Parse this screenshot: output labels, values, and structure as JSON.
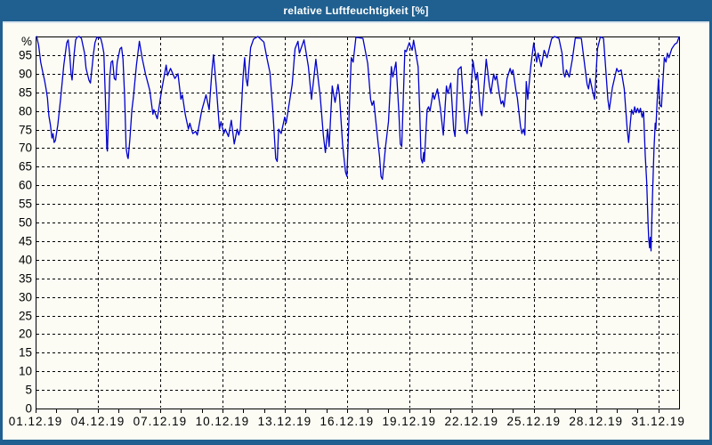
{
  "window": {
    "title": "relative Luftfeuchtigkeit [%]"
  },
  "colors": {
    "titlebar": "#1f6090",
    "window_border": "#1f6090",
    "plot_background": "#fcfcf5",
    "grid": "#000000",
    "series_line": "#0000cc"
  },
  "chart_data": {
    "type": "line",
    "title": "relative Luftfeuchtigkeit [%]",
    "xlabel": "",
    "ylabel": "%",
    "y_axis_unit": "%",
    "ylim": [
      0,
      100
    ],
    "x_range_days": [
      0,
      31
    ],
    "grid": "dashed",
    "legend": "none",
    "y_tick_values": [
      0,
      5,
      10,
      15,
      20,
      25,
      30,
      35,
      40,
      45,
      50,
      55,
      60,
      65,
      70,
      75,
      80,
      85,
      90,
      95
    ],
    "y_grid_values": [
      5,
      10,
      15,
      20,
      25,
      30,
      35,
      40,
      45,
      50,
      55,
      60,
      65,
      70,
      75,
      80,
      85,
      90,
      95
    ],
    "x_grid_days": [
      3,
      6,
      9,
      12,
      15,
      18,
      21,
      24,
      27,
      30
    ],
    "x_minor_tick_days": [
      0,
      1,
      2,
      3,
      4,
      5,
      6,
      7,
      8,
      9,
      10,
      11,
      12,
      13,
      14,
      15,
      16,
      17,
      18,
      19,
      20,
      21,
      22,
      23,
      24,
      25,
      26,
      27,
      28,
      29,
      30
    ],
    "x_ticks": [
      {
        "day": 0,
        "label": "01.12.19"
      },
      {
        "day": 3,
        "label": "04.12.19"
      },
      {
        "day": 6,
        "label": "07.12.19"
      },
      {
        "day": 9,
        "label": "10.12.19"
      },
      {
        "day": 12,
        "label": "13.12.19"
      },
      {
        "day": 15,
        "label": "16.12.19"
      },
      {
        "day": 18,
        "label": "19.12.19"
      },
      {
        "day": 21,
        "label": "22.12.19"
      },
      {
        "day": 24,
        "label": "25.12.19"
      },
      {
        "day": 27,
        "label": "28.12.19"
      },
      {
        "day": 30,
        "label": "31.12.19"
      }
    ],
    "series": [
      {
        "name": "relative Luftfeuchtigkeit",
        "color": "#0000cc",
        "points": [
          [
            0.05,
            100
          ],
          [
            0.15,
            97.5
          ],
          [
            0.25,
            93
          ],
          [
            0.36,
            90
          ],
          [
            0.43,
            88.3
          ],
          [
            0.5,
            86
          ],
          [
            0.57,
            83.5
          ],
          [
            0.64,
            78.7
          ],
          [
            0.71,
            76.3
          ],
          [
            0.79,
            72.7
          ],
          [
            0.84,
            73.9
          ],
          [
            0.89,
            71.5
          ],
          [
            0.95,
            72
          ],
          [
            1.07,
            76.3
          ],
          [
            1.21,
            83.5
          ],
          [
            1.29,
            88.3
          ],
          [
            1.36,
            92.3
          ],
          [
            1.5,
            98.3
          ],
          [
            1.57,
            99.1
          ],
          [
            1.64,
            95.5
          ],
          [
            1.71,
            89.9
          ],
          [
            1.76,
            88.3
          ],
          [
            1.86,
            95.5
          ],
          [
            1.93,
            99.1
          ],
          [
            2.0,
            99.8
          ],
          [
            2.1,
            100
          ],
          [
            2.21,
            99.5
          ],
          [
            2.36,
            95.5
          ],
          [
            2.43,
            91.4
          ],
          [
            2.57,
            88.3
          ],
          [
            2.64,
            87.5
          ],
          [
            2.79,
            95.5
          ],
          [
            2.86,
            98.3
          ],
          [
            2.95,
            99.8
          ],
          [
            3.14,
            99.5
          ],
          [
            3.21,
            97.9
          ],
          [
            3.29,
            95.5
          ],
          [
            3.36,
            83.5
          ],
          [
            3.43,
            70
          ],
          [
            3.46,
            69.2
          ],
          [
            3.57,
            89.1
          ],
          [
            3.64,
            93.1
          ],
          [
            3.71,
            93.5
          ],
          [
            3.79,
            88.7
          ],
          [
            3.86,
            88.3
          ],
          [
            3.93,
            93.1
          ],
          [
            4.07,
            96.7
          ],
          [
            4.14,
            97.1
          ],
          [
            4.21,
            93.9
          ],
          [
            4.29,
            83.5
          ],
          [
            4.36,
            70
          ],
          [
            4.43,
            67.6
          ],
          [
            4.46,
            67.2
          ],
          [
            4.54,
            72.3
          ],
          [
            4.64,
            80.3
          ],
          [
            4.71,
            83.5
          ],
          [
            4.86,
            92.3
          ],
          [
            5.0,
            98.7
          ],
          [
            5.14,
            94
          ],
          [
            5.29,
            90
          ],
          [
            5.5,
            85.5
          ],
          [
            5.65,
            79.1
          ],
          [
            5.7,
            80.3
          ],
          [
            5.86,
            77.9
          ],
          [
            6.07,
            85.5
          ],
          [
            6.29,
            92.3
          ],
          [
            6.36,
            89.5
          ],
          [
            6.5,
            91.4
          ],
          [
            6.71,
            88.7
          ],
          [
            6.86,
            90
          ],
          [
            7.0,
            83.1
          ],
          [
            7.07,
            84.3
          ],
          [
            7.21,
            79
          ],
          [
            7.36,
            75.1
          ],
          [
            7.43,
            76.7
          ],
          [
            7.57,
            73.9
          ],
          [
            7.71,
            74.5
          ],
          [
            7.79,
            73.5
          ],
          [
            8.0,
            80
          ],
          [
            8.21,
            84.3
          ],
          [
            8.36,
            80.3
          ],
          [
            8.5,
            91
          ],
          [
            8.57,
            95.1
          ],
          [
            8.71,
            86.3
          ],
          [
            8.86,
            75.1
          ],
          [
            8.93,
            77.1
          ],
          [
            9.07,
            73.9
          ],
          [
            9.14,
            75.1
          ],
          [
            9.29,
            73.1
          ],
          [
            9.43,
            77.5
          ],
          [
            9.57,
            71.1
          ],
          [
            9.71,
            75.1
          ],
          [
            9.79,
            73.5
          ],
          [
            9.86,
            75.1
          ],
          [
            10.0,
            89.5
          ],
          [
            10.07,
            94.3
          ],
          [
            10.14,
            88.7
          ],
          [
            10.21,
            86.7
          ],
          [
            10.36,
            97
          ],
          [
            10.5,
            99.3
          ],
          [
            10.71,
            100
          ],
          [
            11.0,
            98.5
          ],
          [
            11.14,
            94.3
          ],
          [
            11.29,
            90.3
          ],
          [
            11.43,
            79.9
          ],
          [
            11.57,
            67.2
          ],
          [
            11.64,
            66.4
          ],
          [
            11.71,
            75.1
          ],
          [
            11.83,
            73.9
          ],
          [
            12.0,
            78.3
          ],
          [
            12.07,
            76.7
          ],
          [
            12.36,
            87.1
          ],
          [
            12.5,
            96.7
          ],
          [
            12.64,
            98.7
          ],
          [
            12.71,
            95.5
          ],
          [
            12.93,
            99.1
          ],
          [
            13.14,
            91.9
          ],
          [
            13.29,
            83.1
          ],
          [
            13.5,
            93.9
          ],
          [
            13.71,
            83.9
          ],
          [
            13.86,
            73.5
          ],
          [
            13.96,
            68.8
          ],
          [
            14.07,
            75.1
          ],
          [
            14.14,
            70.4
          ],
          [
            14.29,
            86.7
          ],
          [
            14.43,
            82.3
          ],
          [
            14.57,
            87.1
          ],
          [
            14.64,
            84.3
          ],
          [
            14.79,
            71.1
          ],
          [
            14.93,
            63.6
          ],
          [
            15.0,
            62.4
          ],
          [
            15.14,
            84.7
          ],
          [
            15.21,
            94.3
          ],
          [
            15.3,
            93.1
          ],
          [
            15.43,
            99.8
          ],
          [
            15.77,
            99.5
          ],
          [
            16.0,
            92.7
          ],
          [
            16.14,
            83.1
          ],
          [
            16.21,
            81.5
          ],
          [
            16.29,
            82.7
          ],
          [
            16.43,
            75.1
          ],
          [
            16.57,
            67.6
          ],
          [
            16.64,
            62.4
          ],
          [
            16.71,
            61.6
          ],
          [
            16.86,
            70.4
          ],
          [
            17.0,
            77.1
          ],
          [
            17.14,
            91.9
          ],
          [
            17.21,
            89.1
          ],
          [
            17.36,
            93.1
          ],
          [
            17.5,
            79.9
          ],
          [
            17.57,
            71.1
          ],
          [
            17.64,
            70.4
          ],
          [
            17.79,
            96.3
          ],
          [
            17.86,
            95.9
          ],
          [
            18.0,
            98.3
          ],
          [
            18.14,
            96.3
          ],
          [
            18.21,
            99
          ],
          [
            18.43,
            91.9
          ],
          [
            18.5,
            80.7
          ],
          [
            18.57,
            67.2
          ],
          [
            18.64,
            66
          ],
          [
            18.7,
            68.8
          ],
          [
            18.73,
            66.4
          ],
          [
            18.86,
            80.3
          ],
          [
            18.93,
            81.1
          ],
          [
            19.0,
            79.9
          ],
          [
            19.14,
            84.7
          ],
          [
            19.21,
            83.1
          ],
          [
            19.36,
            85.9
          ],
          [
            19.5,
            80.7
          ],
          [
            19.64,
            73.5
          ],
          [
            19.79,
            86.7
          ],
          [
            19.86,
            84.7
          ],
          [
            20.0,
            87.5
          ],
          [
            20.14,
            75.1
          ],
          [
            20.21,
            73.1
          ],
          [
            20.36,
            91.1
          ],
          [
            20.5,
            91.9
          ],
          [
            20.64,
            79.9
          ],
          [
            20.71,
            75.1
          ],
          [
            20.79,
            73.9
          ],
          [
            20.93,
            81.9
          ],
          [
            21.07,
            93.5
          ],
          [
            21.21,
            88.3
          ],
          [
            21.29,
            90.3
          ],
          [
            21.43,
            79.9
          ],
          [
            21.5,
            78.7
          ],
          [
            21.71,
            93.9
          ],
          [
            21.86,
            87.1
          ],
          [
            21.93,
            84.7
          ],
          [
            22.07,
            89.9
          ],
          [
            22.14,
            88.3
          ],
          [
            22.21,
            89.5
          ],
          [
            22.36,
            83.9
          ],
          [
            22.43,
            81.9
          ],
          [
            22.5,
            82.7
          ],
          [
            22.57,
            81.1
          ],
          [
            22.71,
            88.7
          ],
          [
            22.86,
            91.4
          ],
          [
            22.93,
            89.9
          ],
          [
            23.0,
            91
          ],
          [
            23.14,
            85.5
          ],
          [
            23.21,
            83.5
          ],
          [
            23.36,
            75.9
          ],
          [
            23.43,
            73.9
          ],
          [
            23.5,
            75.1
          ],
          [
            23.57,
            73.5
          ],
          [
            23.64,
            87.9
          ],
          [
            23.71,
            83.1
          ],
          [
            23.86,
            92.3
          ],
          [
            24.0,
            98.3
          ],
          [
            24.14,
            93.1
          ],
          [
            24.21,
            95.5
          ],
          [
            24.36,
            91.9
          ],
          [
            24.5,
            96.3
          ],
          [
            24.64,
            94.3
          ],
          [
            24.86,
            99.4
          ],
          [
            25.0,
            100
          ],
          [
            25.21,
            99.5
          ],
          [
            25.36,
            95.5
          ],
          [
            25.43,
            90.3
          ],
          [
            25.5,
            89.1
          ],
          [
            25.57,
            91
          ],
          [
            25.71,
            89.1
          ],
          [
            25.86,
            93.9
          ],
          [
            26.0,
            99.6
          ],
          [
            26.29,
            99.5
          ],
          [
            26.5,
            90.3
          ],
          [
            26.57,
            87.1
          ],
          [
            26.64,
            85.9
          ],
          [
            26.71,
            88.7
          ],
          [
            26.86,
            84.7
          ],
          [
            26.93,
            83.1
          ],
          [
            27.07,
            96.7
          ],
          [
            27.21,
            99.9
          ],
          [
            27.36,
            99.5
          ],
          [
            27.43,
            94.3
          ],
          [
            27.57,
            83.1
          ],
          [
            27.64,
            80.3
          ],
          [
            27.79,
            86.3
          ],
          [
            28.0,
            91.4
          ],
          [
            28.07,
            90.5
          ],
          [
            28.21,
            91
          ],
          [
            28.36,
            85.9
          ],
          [
            28.5,
            75.1
          ],
          [
            28.57,
            71.5
          ],
          [
            28.71,
            80.3
          ],
          [
            28.79,
            79.1
          ],
          [
            28.86,
            81.1
          ],
          [
            28.93,
            79.5
          ],
          [
            29.0,
            80.7
          ],
          [
            29.07,
            79.5
          ],
          [
            29.14,
            80.7
          ],
          [
            29.22,
            78.3
          ],
          [
            29.29,
            79.9
          ],
          [
            29.37,
            68
          ],
          [
            29.44,
            61
          ],
          [
            29.51,
            49.6
          ],
          [
            29.54,
            45.6
          ],
          [
            29.58,
            43.2
          ],
          [
            29.61,
            46
          ],
          [
            29.65,
            42.4
          ],
          [
            29.72,
            56.8
          ],
          [
            29.79,
            69.6
          ],
          [
            29.85,
            76.7
          ],
          [
            29.88,
            75.1
          ],
          [
            29.94,
            82.3
          ],
          [
            30.01,
            88.7
          ],
          [
            30.08,
            81.5
          ],
          [
            30.15,
            81.1
          ],
          [
            30.29,
            94.3
          ],
          [
            30.37,
            93.1
          ],
          [
            30.44,
            95.5
          ],
          [
            30.51,
            94.3
          ],
          [
            30.65,
            96.7
          ],
          [
            30.79,
            97.9
          ],
          [
            30.9,
            98.3
          ],
          [
            31.0,
            99.9
          ]
        ]
      }
    ]
  }
}
